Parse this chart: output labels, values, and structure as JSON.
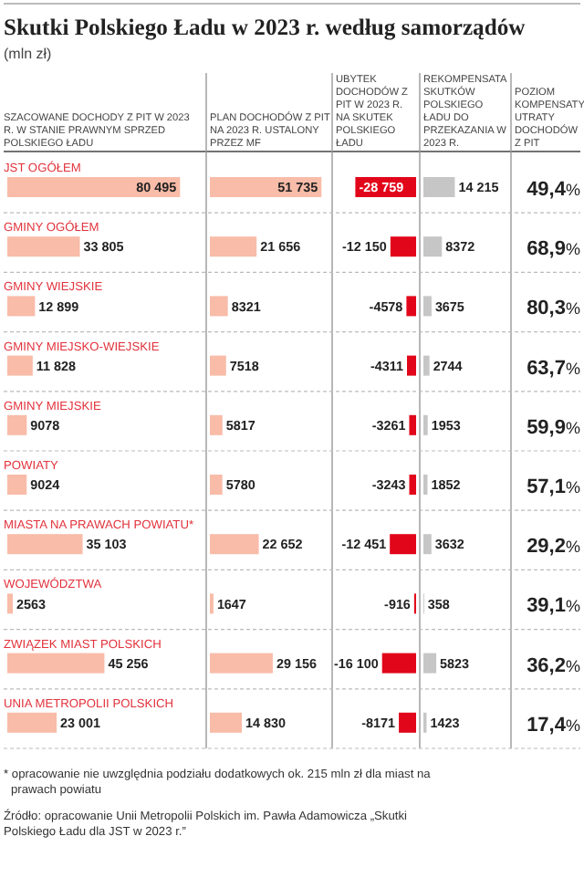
{
  "chart_data": [
    {
      "type": "bar",
      "orientation": "horizontal",
      "title": "Skutki Polskiego Ładu w 2023 r. według samorządów",
      "subtitle": "(mln zł)",
      "xlabel": "SZACOWANE DOCHODY Z PIT W 2023 R. W STANIE PRAWNYM SPRZED POLSKIEGO ŁADU",
      "categories": [
        "JST OGÓŁEM",
        "GMINY OGÓŁEM",
        "GMINY WIEJSKIE",
        "GMINY MIEJSKO-WIEJSKIE",
        "GMINY MIEJSKIE",
        "POWIATY",
        "MIASTA NA PRAWACH POWIATU*",
        "WOJEWÓDZTWA",
        "ZWIĄZEK MIAST POLSKICH",
        "UNIA METROPOLII POLSKICH"
      ],
      "values": [
        80495,
        33805,
        12899,
        11828,
        9078,
        9024,
        35103,
        2563,
        45256,
        23001
      ],
      "value_labels": [
        "80 495",
        "33 805",
        "12 899",
        "11 828",
        "9078",
        "9024",
        "35 103",
        "2563",
        "45 256",
        "23 001"
      ],
      "color": "#f8bca8",
      "xlim": [
        0,
        91000
      ],
      "tick_labels": "y",
      "annotations": [
        "* opracowanie nie uwzględnia podziału dodatkowych ok. 215 mln zł dla miast na prawach powiatu",
        "Źródło: opracowanie Unii Metropolii Polskich im. Pawła Adamowicza „Skutki Polskiego Ładu dla JST w 2023 r.”"
      ]
    },
    {
      "type": "bar",
      "orientation": "horizontal",
      "xlabel": "PLAN DOCHODÓW Z PIT NA 2023 R. USTALONY PRZEZ MF",
      "categories": [
        null,
        null,
        null,
        null,
        null,
        null,
        null,
        null,
        null,
        null
      ],
      "values": [
        51735,
        21656,
        8321,
        7518,
        5817,
        5780,
        22652,
        1647,
        29156,
        14830
      ],
      "value_labels": [
        "51 735",
        "21 656",
        "8321",
        "7518",
        "5817",
        "5780",
        "22 652",
        "1647",
        "29 156",
        "14 830"
      ],
      "color": "#f8bca8",
      "xlim": [
        0,
        55000
      ],
      "tick_labels": false
    },
    {
      "type": "bar",
      "orientation": "horizontal",
      "xlabel": "UBYTEK DOCHODÓW Z PIT W 2023 R. NA SKUTEK POLSKIEGO ŁADU",
      "categories": [
        null,
        null,
        null,
        null,
        null,
        null,
        null,
        null,
        null,
        null
      ],
      "values": [
        -28759,
        -12150,
        -4578,
        -4311,
        -3261,
        -3243,
        -12451,
        -916,
        -16100,
        -8171
      ],
      "value_labels": [
        "-28 759",
        "-12 150",
        "-4578",
        "-4311",
        "-3261",
        "-3243",
        "-12 451",
        "-916",
        "-16 100",
        "-8171"
      ],
      "color": "#e2061a",
      "xlim": [
        -38000,
        0
      ],
      "tick_labels": false
    },
    {
      "type": "bar",
      "orientation": "horizontal",
      "xlabel": "REKOMPENSATA SKUTKÓW POLSKIEGO ŁADU DO PRZEKAZANIA W 2023 R.",
      "categories": [
        null,
        null,
        null,
        null,
        null,
        null,
        null,
        null,
        null,
        null
      ],
      "values": [
        14215,
        8372,
        3675,
        2744,
        1953,
        1852,
        3632,
        358,
        5823,
        1423
      ],
      "value_labels": [
        "14 215",
        "8372",
        "3675",
        "2744",
        "1953",
        "1852",
        "3632",
        "358",
        "5823",
        "1423"
      ],
      "color": "#c6c6c6",
      "xlim": [
        0,
        38000
      ],
      "tick_labels": false
    },
    {
      "type": "other",
      "xlabel": "POZIOM KOMPENSATY UTRATY DOCHODÓW Z PIT",
      "values": [
        49.4,
        68.9,
        80.3,
        63.7,
        59.9,
        57.1,
        29.2,
        39.1,
        36.2,
        17.4
      ],
      "value_labels": [
        "49,4%",
        "68,9%",
        "80,3%",
        "63,7%",
        "59,9%",
        "57,1%",
        "29,2%",
        "39,1%",
        "36,2%",
        "17,4%"
      ]
    }
  ]
}
